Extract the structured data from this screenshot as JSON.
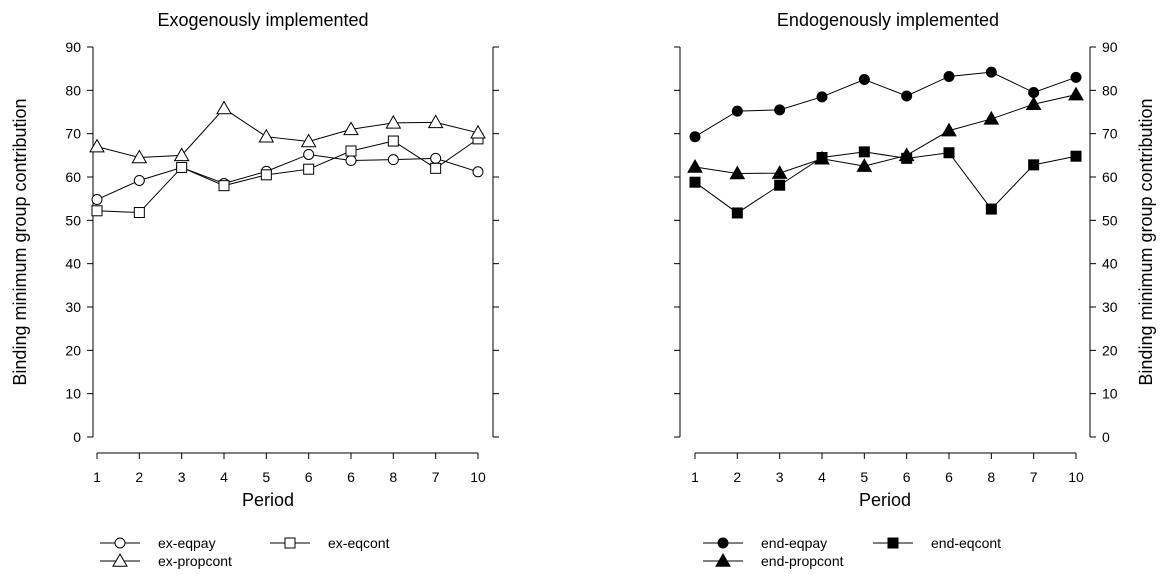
{
  "chart_data": [
    {
      "type": "line",
      "title": "Exogenously implemented",
      "xlabel": "Period",
      "ylabel": "Binding minimum group contribution",
      "ylim": [
        0,
        90
      ],
      "yticks": [
        0,
        10,
        20,
        30,
        40,
        50,
        60,
        70,
        80,
        90
      ],
      "categories": [
        "1",
        "2",
        "3",
        "4",
        "5",
        "6",
        "6",
        "8",
        "7",
        "10"
      ],
      "grid": false,
      "legend_position": "bottom",
      "series": [
        {
          "name": "ex-eqpay",
          "marker": "circle-open",
          "values": [
            54.8,
            59.2,
            62.2,
            58.5,
            61.3,
            65.2,
            63.8,
            64.0,
            64.3,
            61.2
          ]
        },
        {
          "name": "ex-eqcont",
          "marker": "square-open",
          "values": [
            52.2,
            51.8,
            62.2,
            58.0,
            60.5,
            61.8,
            66.0,
            68.3,
            62.0,
            68.8
          ]
        },
        {
          "name": "ex-propcont",
          "marker": "triangle-open",
          "values": [
            67.0,
            64.5,
            65.0,
            75.8,
            69.3,
            68.2,
            71.0,
            72.5,
            72.6,
            70.2
          ]
        }
      ]
    },
    {
      "type": "line",
      "title": "Endogenously implemented",
      "xlabel": "Period",
      "ylabel": "Binding minimum group contribution",
      "ylim": [
        0,
        90
      ],
      "yticks": [
        0,
        10,
        20,
        30,
        40,
        50,
        60,
        70,
        80,
        90
      ],
      "categories": [
        "1",
        "2",
        "3",
        "4",
        "5",
        "6",
        "6",
        "8",
        "7",
        "10"
      ],
      "grid": false,
      "legend_position": "bottom",
      "series": [
        {
          "name": "end-eqpay",
          "marker": "circle-filled",
          "values": [
            69.3,
            75.2,
            75.5,
            78.5,
            82.5,
            78.7,
            83.2,
            84.2,
            79.5,
            83.0
          ]
        },
        {
          "name": "end-eqcont",
          "marker": "square-filled",
          "values": [
            58.8,
            51.7,
            58.1,
            64.5,
            65.8,
            64.3,
            65.6,
            52.6,
            62.8,
            64.8
          ]
        },
        {
          "name": "end-propcont",
          "marker": "triangle-filled",
          "values": [
            62.3,
            60.8,
            60.9,
            64.2,
            62.5,
            65.0,
            70.7,
            73.4,
            76.8,
            79.0
          ]
        }
      ]
    }
  ]
}
